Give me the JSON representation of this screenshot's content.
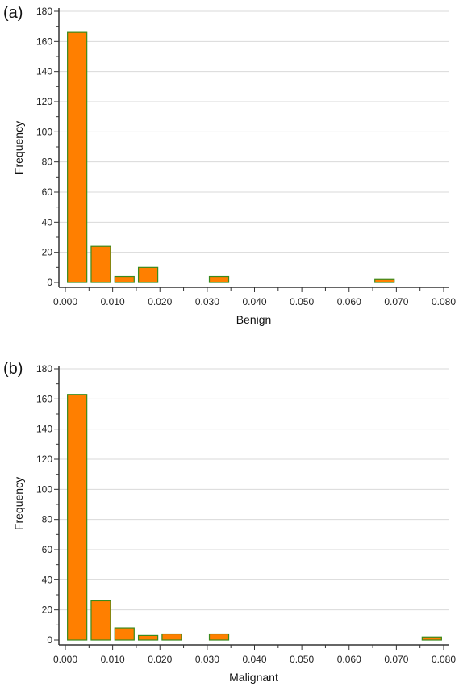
{
  "chart_data": [
    {
      "panel_label": "(a)",
      "type": "bar",
      "xlabel": "Benign",
      "ylabel": "Frequency",
      "xlim": [
        0.0,
        0.08
      ],
      "ylim": [
        0,
        180
      ],
      "bin_width": 0.005,
      "x_ticks": [
        "0.000",
        "0.010",
        "0.020",
        "0.030",
        "0.040",
        "0.050",
        "0.060",
        "0.070",
        "0.080"
      ],
      "y_ticks": [
        "0",
        "20",
        "40",
        "60",
        "80",
        "100",
        "120",
        "140",
        "160",
        "180"
      ],
      "bars": [
        {
          "x": 0.0025,
          "value": 166
        },
        {
          "x": 0.0075,
          "value": 24
        },
        {
          "x": 0.0125,
          "value": 4
        },
        {
          "x": 0.0175,
          "value": 10
        },
        {
          "x": 0.0325,
          "value": 4
        },
        {
          "x": 0.0675,
          "value": 2
        }
      ],
      "grid": true
    },
    {
      "panel_label": "(b)",
      "type": "bar",
      "xlabel": "Malignant",
      "ylabel": "Frequency",
      "xlim": [
        0.0,
        0.08
      ],
      "ylim": [
        0,
        180
      ],
      "bin_width": 0.005,
      "x_ticks": [
        "0.000",
        "0.010",
        "0.020",
        "0.030",
        "0.040",
        "0.050",
        "0.060",
        "0.070",
        "0.080"
      ],
      "y_ticks": [
        "0",
        "20",
        "40",
        "60",
        "80",
        "100",
        "120",
        "140",
        "160",
        "180"
      ],
      "bars": [
        {
          "x": 0.0025,
          "value": 163
        },
        {
          "x": 0.0075,
          "value": 26
        },
        {
          "x": 0.0125,
          "value": 8
        },
        {
          "x": 0.0175,
          "value": 3
        },
        {
          "x": 0.0225,
          "value": 4
        },
        {
          "x": 0.0325,
          "value": 4
        },
        {
          "x": 0.0775,
          "value": 2
        }
      ],
      "grid": true
    }
  ],
  "colors": {
    "bar_fill": "#FF7F00",
    "bar_stroke": "#3A8A1C",
    "grid": "#DADADA",
    "axis": "#333333"
  }
}
